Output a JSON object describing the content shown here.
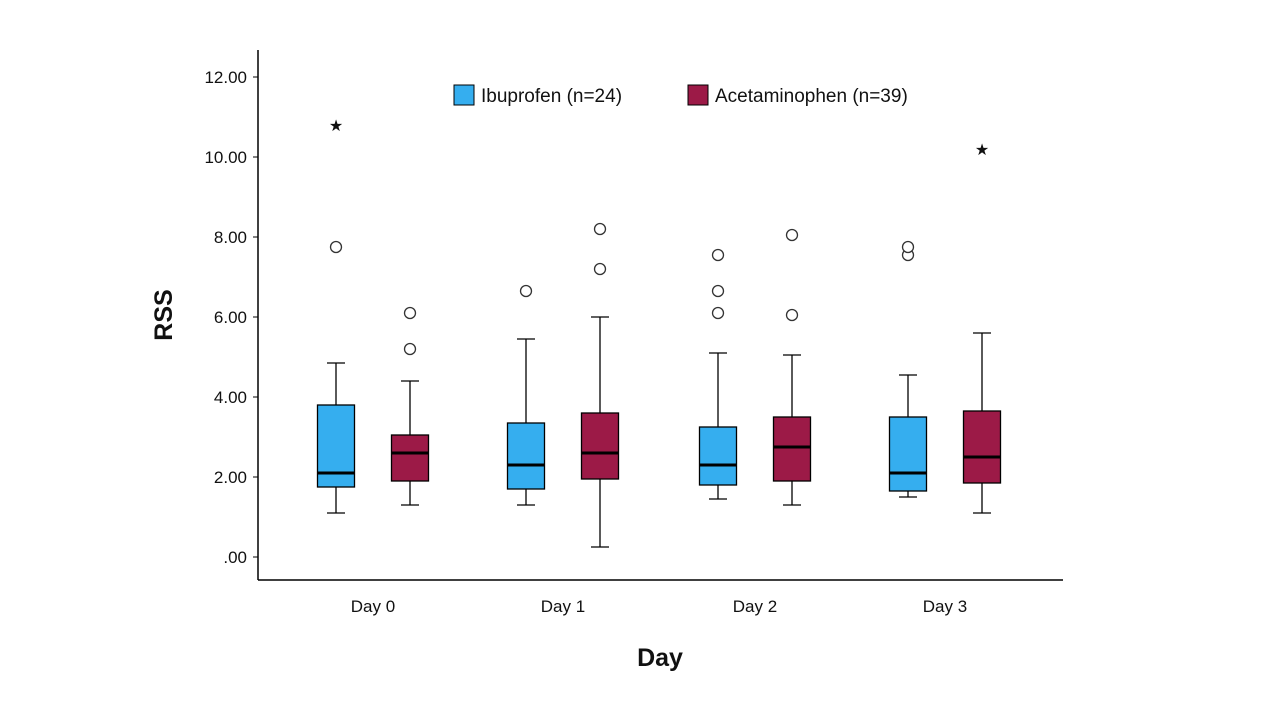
{
  "chart_data": {
    "type": "boxplot",
    "xlabel": "Day",
    "ylabel": "RSS",
    "categories": [
      "Day 0",
      "Day 1",
      "Day 2",
      "Day 3"
    ],
    "ylim": [
      0,
      13
    ],
    "yticks": [
      0,
      2,
      4,
      6,
      8,
      10,
      12
    ],
    "ytick_labels": [
      ".00",
      "2.00",
      "4.00",
      "6.00",
      "8.00",
      "10.00",
      "12.00"
    ],
    "grid": false,
    "legend_position": "top-center",
    "series": [
      {
        "name": "Ibuprofen (n=24)",
        "color": "#35AEEF",
        "boxes": [
          {
            "min": 1.1,
            "q1": 1.75,
            "median": 2.1,
            "q3": 3.8,
            "max": 4.85,
            "outliers": [
              7.75
            ],
            "extremes": [
              10.8
            ]
          },
          {
            "min": 1.3,
            "q1": 1.7,
            "median": 2.3,
            "q3": 3.35,
            "max": 5.45,
            "outliers": [
              6.65
            ],
            "extremes": []
          },
          {
            "min": 1.45,
            "q1": 1.8,
            "median": 2.3,
            "q3": 3.25,
            "max": 5.1,
            "outliers": [
              6.1,
              6.65,
              7.55
            ],
            "extremes": []
          },
          {
            "min": 1.5,
            "q1": 1.65,
            "median": 2.1,
            "q3": 3.5,
            "max": 4.55,
            "outliers": [
              7.55,
              7.75
            ],
            "extremes": []
          }
        ]
      },
      {
        "name": "Acetaminophen (n=39)",
        "color": "#9C1A47",
        "boxes": [
          {
            "min": 1.3,
            "q1": 1.9,
            "median": 2.6,
            "q3": 3.05,
            "max": 4.4,
            "outliers": [
              5.2,
              6.1
            ],
            "extremes": []
          },
          {
            "min": 0.25,
            "q1": 1.95,
            "median": 2.6,
            "q3": 3.6,
            "max": 6.0,
            "outliers": [
              7.2,
              8.2
            ],
            "extremes": []
          },
          {
            "min": 1.3,
            "q1": 1.9,
            "median": 2.75,
            "q3": 3.5,
            "max": 5.05,
            "outliers": [
              6.05,
              8.05
            ],
            "extremes": []
          },
          {
            "min": 1.1,
            "q1": 1.85,
            "median": 2.5,
            "q3": 3.65,
            "max": 5.6,
            "outliers": [],
            "extremes": [
              10.2
            ]
          }
        ]
      }
    ]
  }
}
